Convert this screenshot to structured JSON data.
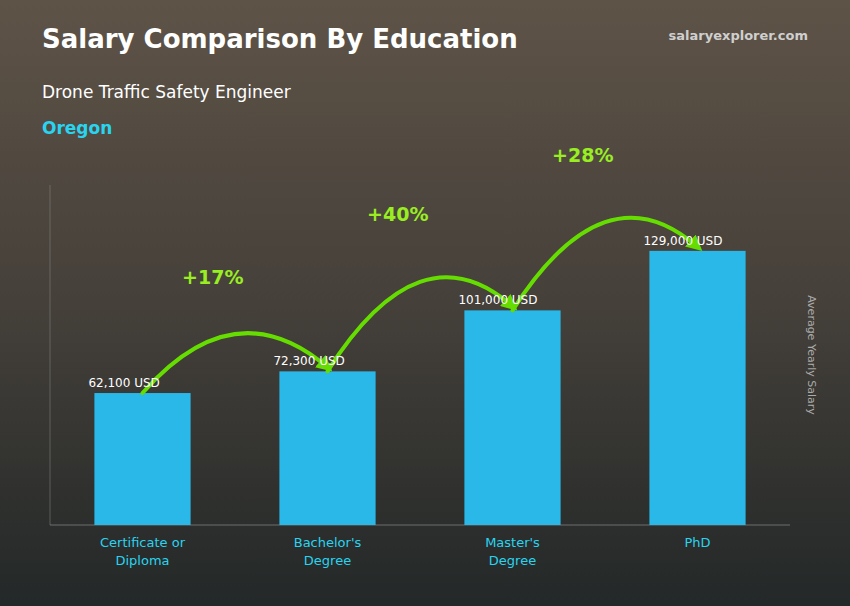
{
  "chart_data": {
    "type": "bar",
    "title": "Salary Comparison By Education",
    "subtitle": "Drone Traffic Safety Engineer",
    "annotations": [
      {
        "text": "Oregon"
      },
      {
        "text": "salaryexplorer.com"
      },
      {
        "text": "+17%",
        "from": 0,
        "to": 1
      },
      {
        "text": "+40%",
        "from": 1,
        "to": 2
      },
      {
        "text": "+28%",
        "from": 2,
        "to": 3
      }
    ],
    "ylabel": "Average Yearly Salary",
    "categories": [
      "Certificate or\nDiploma",
      "Bachelor's\nDegree",
      "Master's\nDegree",
      "PhD"
    ],
    "values": [
      62100,
      72300,
      101000,
      129000
    ],
    "value_labels": [
      "62,100 USD",
      "72,300 USD",
      "101,000 USD",
      "129,000 USD"
    ],
    "data_labels": true,
    "color": "#29b8e8",
    "ylim": [
      0,
      160000
    ],
    "tick_labels": "x",
    "grid": false
  }
}
